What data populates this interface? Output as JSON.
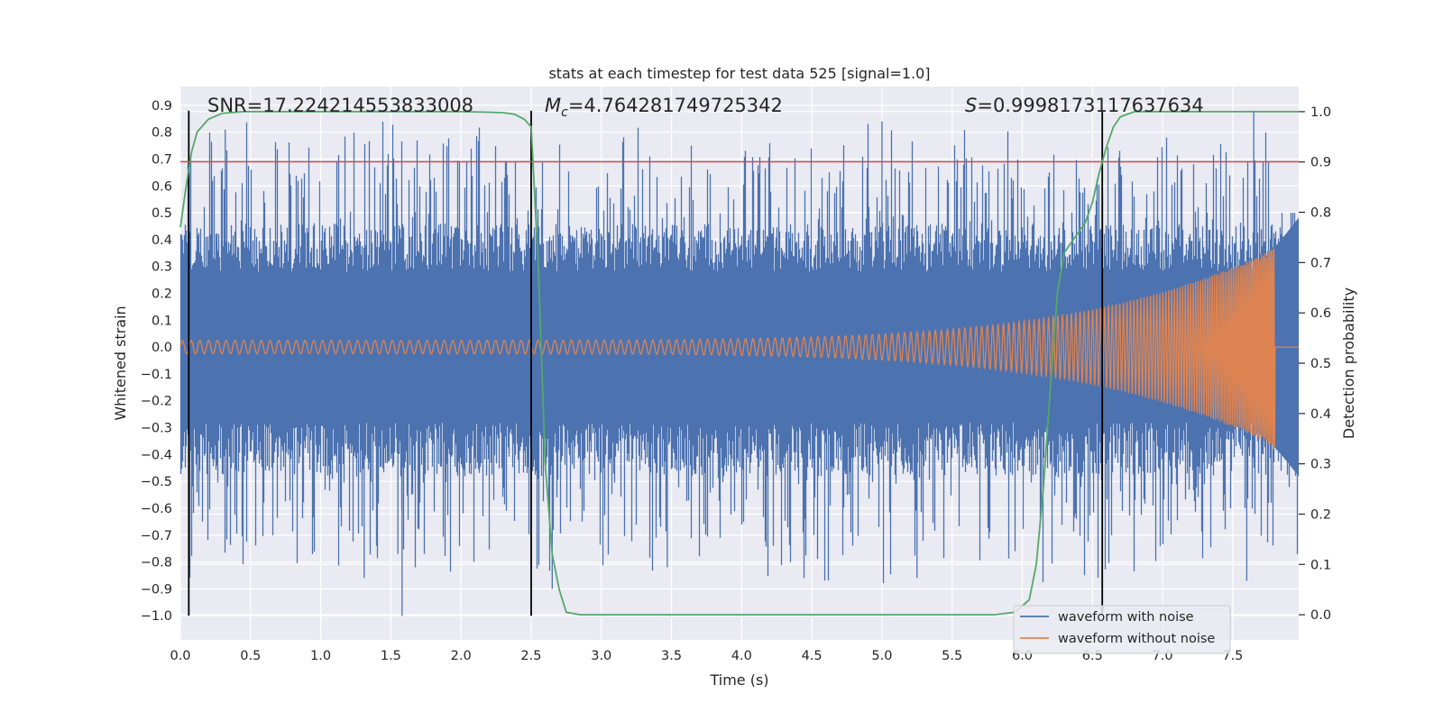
{
  "chart_data": {
    "type": "line",
    "title": "stats at each timestep for test data 525 [signal=1.0]",
    "xlabel": "Time (s)",
    "ylabel_left": "Whitened strain",
    "ylabel_right": "Detection probability",
    "xlim": [
      0.0,
      7.97
    ],
    "ylim_left": [
      -1.09,
      0.97
    ],
    "ylim_right": [
      -0.05,
      1.05
    ],
    "xticks": [
      0.0,
      0.5,
      1.0,
      1.5,
      2.0,
      2.5,
      3.0,
      3.5,
      4.0,
      4.5,
      5.0,
      5.5,
      6.0,
      6.5,
      7.0,
      7.5
    ],
    "xtick_labels": [
      "0.0",
      "0.5",
      "1.0",
      "1.5",
      "2.0",
      "2.5",
      "3.0",
      "3.5",
      "4.0",
      "4.5",
      "5.0",
      "5.5",
      "6.0",
      "6.5",
      "7.0",
      "7.5"
    ],
    "yticks_left": [
      0.9,
      0.8,
      0.7,
      0.6,
      0.5,
      0.4,
      0.3,
      0.2,
      0.1,
      0.0,
      -0.1,
      -0.2,
      -0.3,
      -0.4,
      -0.5,
      -0.6,
      -0.7,
      -0.8,
      -0.9,
      -1.0
    ],
    "ytick_labels_left": [
      "0.9",
      "0.8",
      "0.7",
      "0.6",
      "0.5",
      "0.4",
      "0.3",
      "0.2",
      "0.1",
      "0.0",
      "−0.1",
      "−0.2",
      "−0.3",
      "−0.4",
      "−0.5",
      "−0.6",
      "−0.7",
      "−0.8",
      "−0.9",
      "−1.0"
    ],
    "yticks_right": [
      1.0,
      0.9,
      0.8,
      0.7,
      0.6,
      0.5,
      0.4,
      0.3,
      0.2,
      0.1,
      0.0
    ],
    "ytick_labels_right": [
      "1.0",
      "0.9",
      "0.8",
      "0.7",
      "0.6",
      "0.5",
      "0.4",
      "0.3",
      "0.2",
      "0.1",
      "0.0"
    ],
    "annotations": {
      "snr": "SNR=17.224214553833008",
      "mc_symbol": "M",
      "mc_sub": "c",
      "mc_value": "=4.764281749725342",
      "s_symbol": "S",
      "s_value": "=0.9998173117637634"
    },
    "threshold_line": {
      "axis": "left",
      "y": 0.69,
      "color": "#c44e52"
    },
    "vertical_markers_x": [
      0.06,
      2.5,
      6.57
    ],
    "series": [
      {
        "name": "waveform with noise",
        "color": "#4c72b0",
        "kind": "noisy-strain",
        "noise_floor_amplitude": 0.28,
        "peak_max": 0.85,
        "peak_min": -1.0
      },
      {
        "name": "waveform without noise",
        "color": "#dd8452",
        "kind": "chirp",
        "start_amplitude": 0.025,
        "end_amplitude": 0.37,
        "merger_time": 7.8,
        "end_time": 7.97
      },
      {
        "name": "detection probability",
        "color": "#55a868",
        "axis": "right",
        "x": [
          0.0,
          0.04,
          0.08,
          0.12,
          0.2,
          0.3,
          0.45,
          0.6,
          1.0,
          1.5,
          2.0,
          2.2,
          2.3,
          2.38,
          2.45,
          2.5,
          2.55,
          2.6,
          2.65,
          2.7,
          2.75,
          2.85,
          3.2,
          4.0,
          5.0,
          5.8,
          5.95,
          6.05,
          6.1,
          6.15,
          6.2,
          6.25,
          6.3,
          6.35,
          6.45,
          6.5,
          6.55,
          6.6,
          6.65,
          6.7,
          6.8,
          7.0,
          7.5,
          7.97
        ],
        "y": [
          0.77,
          0.85,
          0.92,
          0.96,
          0.985,
          0.997,
          1.0,
          1.0,
          1.0,
          1.0,
          1.0,
          0.999,
          0.998,
          0.995,
          0.985,
          0.97,
          0.7,
          0.3,
          0.12,
          0.05,
          0.005,
          0.0,
          0.0,
          0.0,
          0.0,
          0.0,
          0.005,
          0.03,
          0.1,
          0.25,
          0.45,
          0.64,
          0.72,
          0.74,
          0.78,
          0.82,
          0.88,
          0.93,
          0.97,
          0.99,
          1.0,
          1.0,
          1.0,
          1.0
        ]
      }
    ],
    "legend": {
      "position": "lower-right",
      "entries": [
        "waveform with noise",
        "waveform without noise"
      ]
    }
  }
}
